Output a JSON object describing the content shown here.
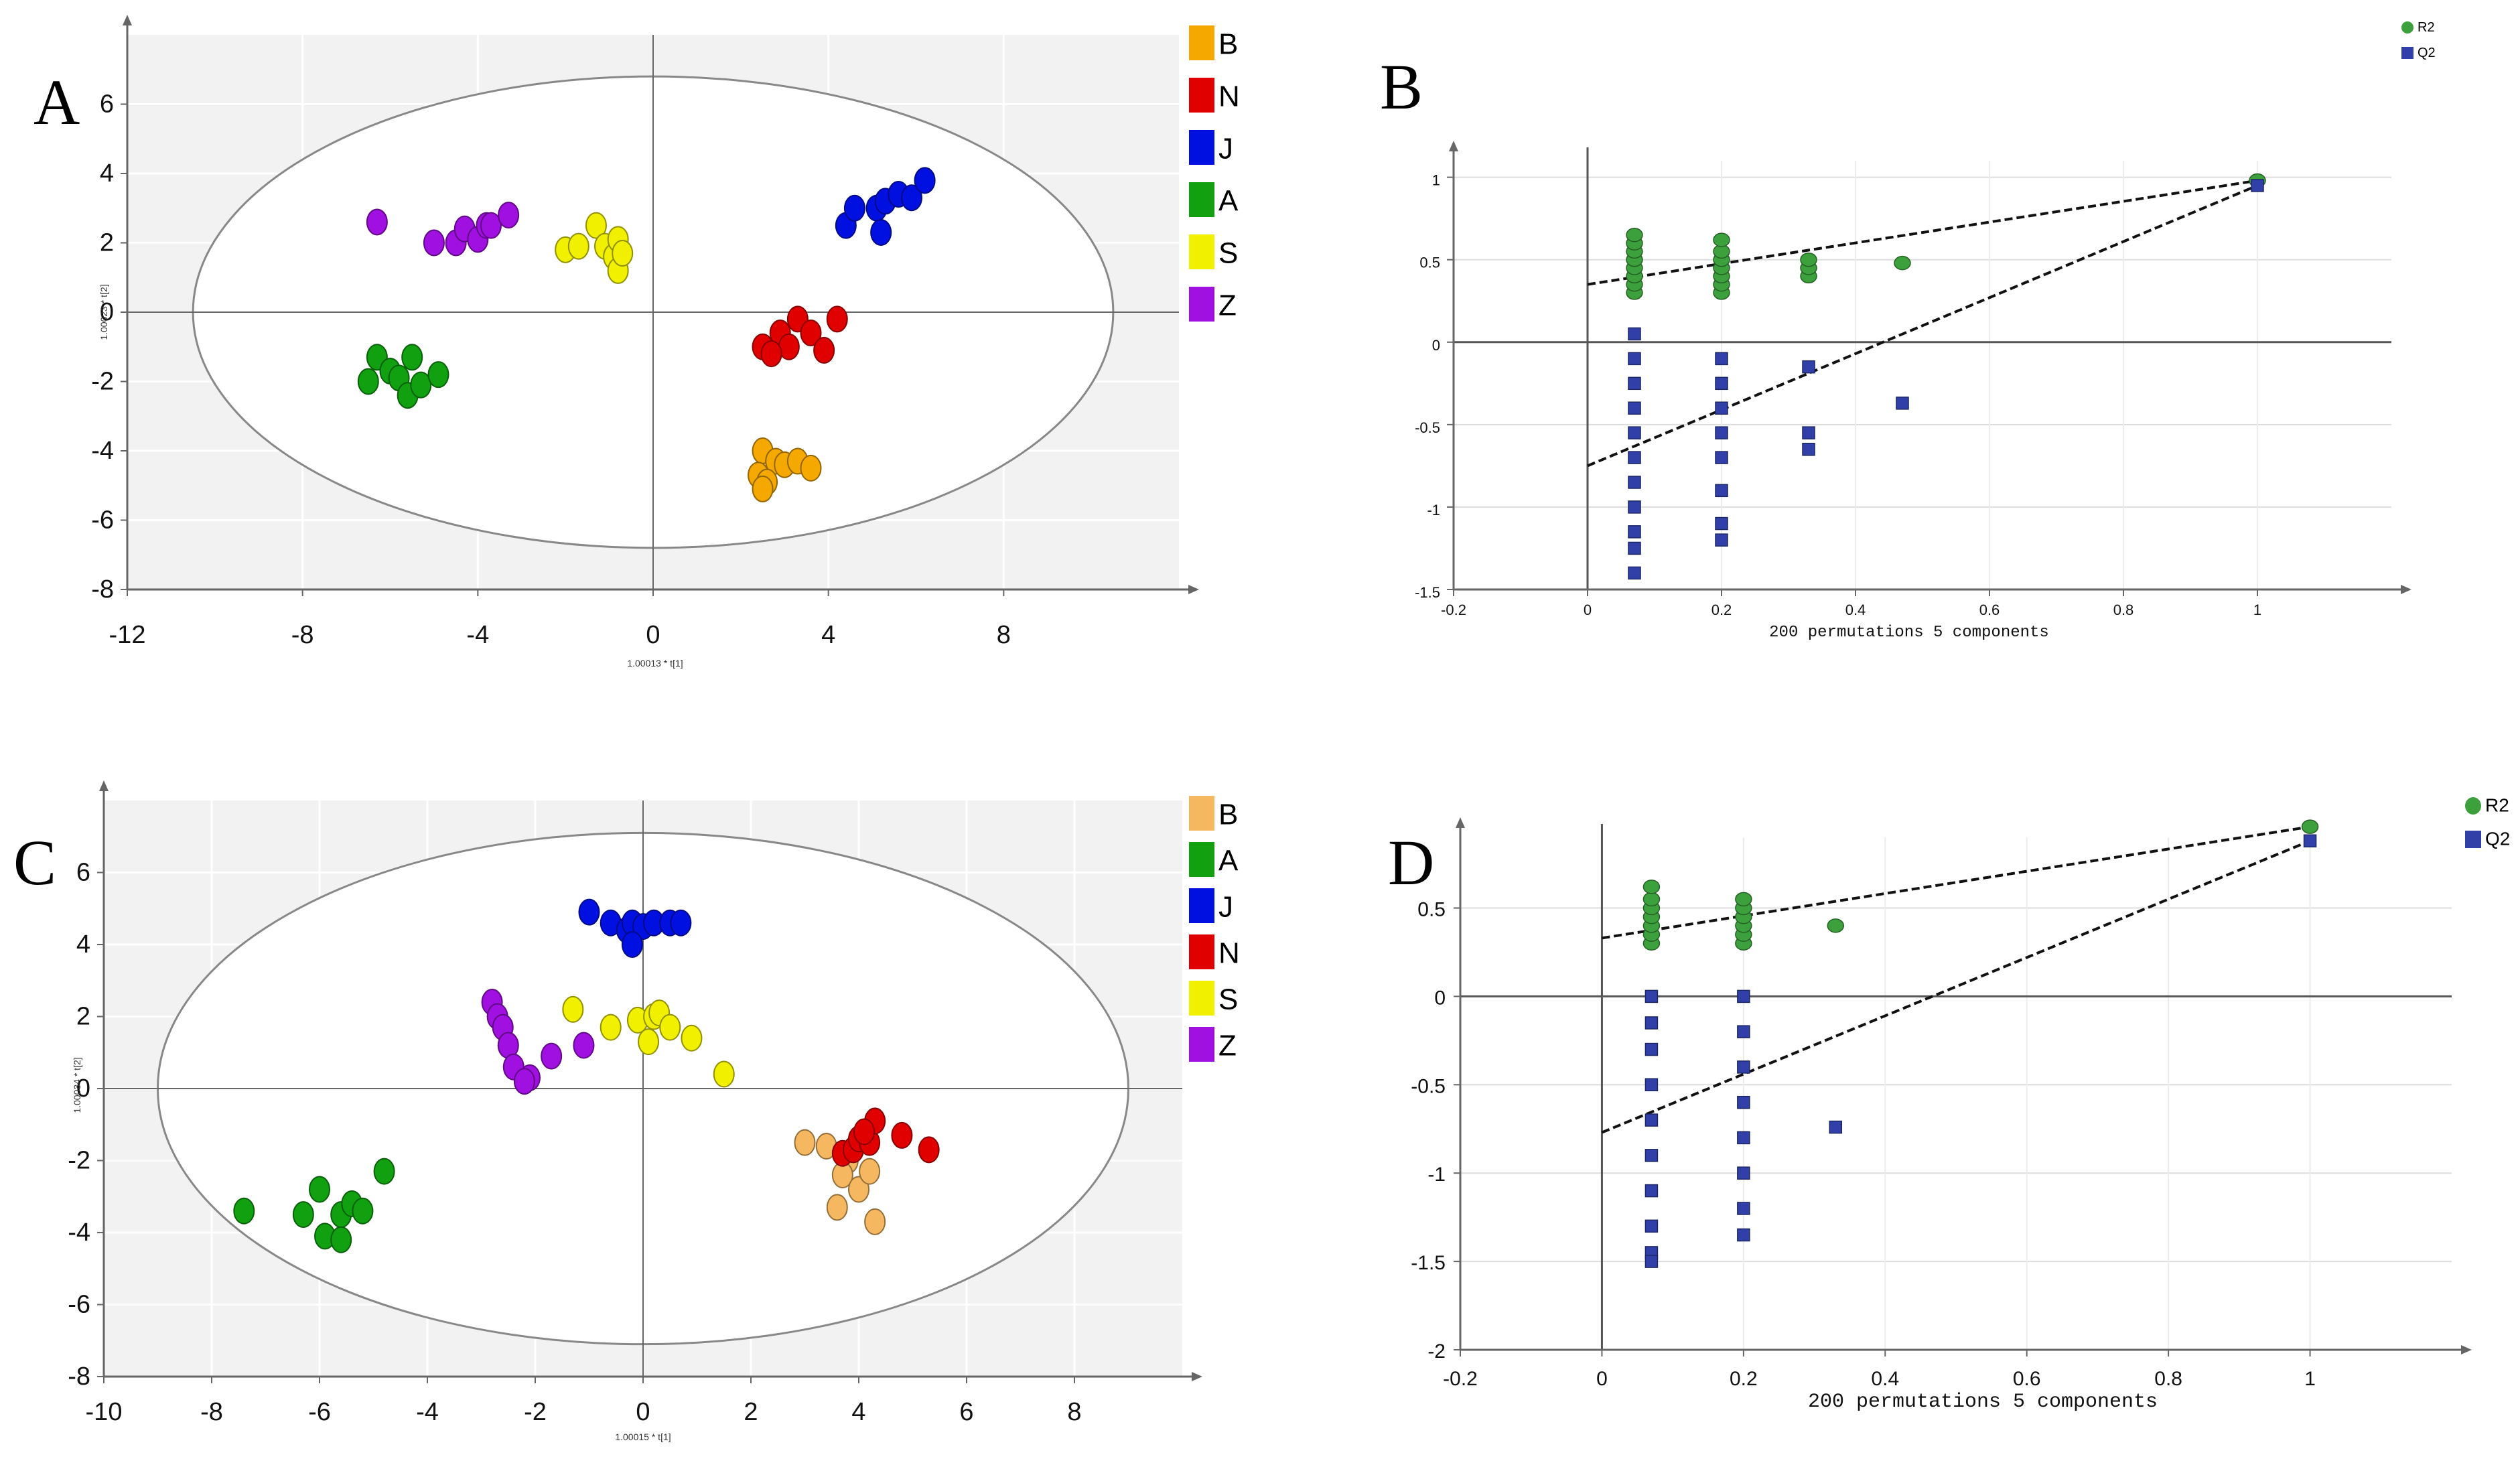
{
  "chart_data": [
    {
      "panel": "A",
      "type": "scatter",
      "xlabel": "1.00013 * t[1]",
      "ylabel": "1.00023 * t[2]",
      "xlim": [
        -12,
        12
      ],
      "ylim": [
        -8,
        8
      ],
      "xticks": [
        -12,
        -8,
        -4,
        0,
        4,
        8
      ],
      "yticks": [
        -8,
        -6,
        -4,
        -2,
        0,
        2,
        4,
        6
      ],
      "ellipse": {
        "cx": 0,
        "cy": 0,
        "rx": 10.5,
        "ry": 6.8
      },
      "legend": [
        {
          "name": "B",
          "color": "#F5A800"
        },
        {
          "name": "N",
          "color": "#E00000"
        },
        {
          "name": "J",
          "color": "#0010E0"
        },
        {
          "name": "A",
          "color": "#10A010"
        },
        {
          "name": "S",
          "color": "#F0F000"
        },
        {
          "name": "Z",
          "color": "#A010E0"
        }
      ],
      "series": [
        {
          "name": "B",
          "x": [
            2.5,
            2.8,
            3.0,
            3.3,
            2.4,
            2.6,
            3.6,
            2.5
          ],
          "y": [
            -4.0,
            -4.3,
            -4.4,
            -4.3,
            -4.7,
            -4.9,
            -4.5,
            -5.1
          ]
        },
        {
          "name": "N",
          "x": [
            2.5,
            2.9,
            3.1,
            3.3,
            3.6,
            3.9,
            4.2,
            2.7
          ],
          "y": [
            -1.0,
            -0.6,
            -1.0,
            -0.2,
            -0.6,
            -1.1,
            -0.2,
            -1.2
          ]
        },
        {
          "name": "J",
          "x": [
            4.4,
            4.6,
            5.1,
            5.3,
            5.6,
            5.9,
            6.2,
            5.2
          ],
          "y": [
            2.5,
            3.0,
            3.0,
            3.2,
            3.4,
            3.3,
            3.8,
            2.3
          ]
        },
        {
          "name": "A",
          "x": [
            -6.5,
            -6.3,
            -6.0,
            -5.8,
            -5.6,
            -5.5,
            -5.3,
            -4.9
          ],
          "y": [
            -2.0,
            -1.3,
            -1.7,
            -1.9,
            -2.4,
            -1.3,
            -2.1,
            -1.8
          ]
        },
        {
          "name": "S",
          "x": [
            -2.0,
            -1.7,
            -1.3,
            -1.1,
            -0.9,
            -0.8,
            -0.8,
            -0.7
          ],
          "y": [
            1.8,
            1.9,
            2.5,
            1.9,
            1.6,
            2.1,
            1.2,
            1.7
          ]
        },
        {
          "name": "Z",
          "x": [
            -6.3,
            -5.0,
            -4.5,
            -4.3,
            -4.0,
            -3.8,
            -3.7,
            -3.3
          ],
          "y": [
            2.6,
            2.0,
            2.0,
            2.4,
            2.1,
            2.5,
            2.5,
            2.8
          ]
        }
      ]
    },
    {
      "panel": "B",
      "type": "scatter",
      "xlabel": "200 permutations 5 components",
      "xlim": [
        -0.2,
        1.2
      ],
      "ylim": [
        -1.5,
        1.1
      ],
      "xticks": [
        -0.2,
        0,
        0.2,
        0.4,
        0.6,
        0.8,
        1
      ],
      "yticks": [
        -1.5,
        -1,
        -0.5,
        0,
        0.5,
        1
      ],
      "legend": [
        {
          "name": "R2",
          "color": "#3CA03C"
        },
        {
          "name": "Q2",
          "color": "#3040A8"
        }
      ],
      "series": [
        {
          "name": "R2",
          "x": [
            0.07,
            0.07,
            0.07,
            0.07,
            0.07,
            0.07,
            0.07,
            0.07,
            0.2,
            0.2,
            0.2,
            0.2,
            0.2,
            0.2,
            0.2,
            0.33,
            0.33,
            0.33,
            0.47,
            1.0
          ],
          "y": [
            0.3,
            0.35,
            0.4,
            0.45,
            0.5,
            0.55,
            0.6,
            0.65,
            0.3,
            0.35,
            0.4,
            0.45,
            0.5,
            0.55,
            0.62,
            0.4,
            0.45,
            0.5,
            0.48,
            0.98
          ]
        },
        {
          "name": "Q2",
          "x": [
            0.07,
            0.07,
            0.07,
            0.07,
            0.07,
            0.07,
            0.07,
            0.07,
            0.07,
            0.07,
            0.07,
            0.2,
            0.2,
            0.2,
            0.2,
            0.2,
            0.2,
            0.2,
            0.2,
            0.33,
            0.33,
            0.33,
            0.47,
            1.0
          ],
          "y": [
            0.05,
            -0.1,
            -0.25,
            -0.4,
            -0.55,
            -0.7,
            -0.85,
            -1.0,
            -1.15,
            -1.25,
            -1.4,
            -0.1,
            -0.25,
            -0.4,
            -0.55,
            -0.7,
            -0.9,
            -1.1,
            -1.2,
            -0.15,
            -0.55,
            -0.65,
            -0.37,
            0.95
          ]
        }
      ],
      "regression": [
        {
          "name": "R2",
          "x": [
            0,
            1.0
          ],
          "y": [
            0.35,
            0.98
          ]
        },
        {
          "name": "Q2",
          "x": [
            0,
            1.0
          ],
          "y": [
            -0.75,
            0.95
          ]
        }
      ]
    },
    {
      "panel": "C",
      "type": "scatter",
      "xlabel": "1.00015 * t[1]",
      "ylabel": "1.00034 * t[2]",
      "xlim": [
        -10,
        10
      ],
      "ylim": [
        -8,
        8
      ],
      "xticks": [
        -10,
        -8,
        -6,
        -4,
        -2,
        0,
        2,
        4,
        6,
        8
      ],
      "yticks": [
        -8,
        -6,
        -4,
        -2,
        0,
        2,
        4,
        6
      ],
      "ellipse": {
        "cx": 0,
        "cy": 0,
        "rx": 9.0,
        "ry": 7.1
      },
      "legend": [
        {
          "name": "B",
          "color": "#F5B860"
        },
        {
          "name": "A",
          "color": "#10A010"
        },
        {
          "name": "J",
          "color": "#0010E0"
        },
        {
          "name": "N",
          "color": "#E00000"
        },
        {
          "name": "S",
          "color": "#F0F000"
        },
        {
          "name": "Z",
          "color": "#A010E0"
        }
      ],
      "series": [
        {
          "name": "B",
          "x": [
            3.0,
            3.4,
            3.8,
            3.7,
            3.6,
            4.0,
            4.2,
            4.3
          ],
          "y": [
            -1.5,
            -1.6,
            -2.0,
            -2.4,
            -3.3,
            -2.8,
            -2.3,
            -3.7
          ]
        },
        {
          "name": "A",
          "x": [
            -7.4,
            -6.3,
            -6.0,
            -5.9,
            -5.6,
            -5.4,
            -5.2,
            -5.6,
            -4.8
          ],
          "y": [
            -3.4,
            -3.5,
            -2.8,
            -4.1,
            -3.5,
            -3.2,
            -3.4,
            -4.2,
            -2.3
          ]
        },
        {
          "name": "J",
          "x": [
            -1.0,
            -0.6,
            -0.3,
            -0.2,
            0.0,
            0.2,
            0.5,
            0.7,
            -0.2
          ],
          "y": [
            4.9,
            4.6,
            4.4,
            4.6,
            4.5,
            4.6,
            4.6,
            4.6,
            4.0
          ]
        },
        {
          "name": "N",
          "x": [
            3.7,
            3.9,
            4.0,
            4.2,
            4.3,
            4.8,
            5.3,
            4.1
          ],
          "y": [
            -1.8,
            -1.7,
            -1.4,
            -1.5,
            -0.9,
            -1.3,
            -1.7,
            -1.2
          ]
        },
        {
          "name": "S",
          "x": [
            -1.3,
            -0.6,
            -0.1,
            0.2,
            0.3,
            0.5,
            0.9,
            1.5,
            0.1
          ],
          "y": [
            2.2,
            1.7,
            1.9,
            2.0,
            2.1,
            1.7,
            1.4,
            0.4,
            1.3
          ]
        },
        {
          "name": "Z",
          "x": [
            -2.8,
            -2.7,
            -2.6,
            -2.5,
            -2.4,
            -2.1,
            -2.2,
            -1.7,
            -1.1
          ],
          "y": [
            2.4,
            2.0,
            1.7,
            1.2,
            0.6,
            0.3,
            0.2,
            0.9,
            1.2
          ]
        }
      ]
    },
    {
      "panel": "D",
      "type": "scatter",
      "xlabel": "200 permutations 5 components",
      "xlim": [
        -0.2,
        1.2
      ],
      "ylim": [
        -2,
        0.9
      ],
      "xticks": [
        -0.2,
        0,
        0.2,
        0.4,
        0.6,
        0.8,
        1
      ],
      "yticks": [
        -2,
        -1.5,
        -1,
        -0.5,
        0,
        0.5
      ],
      "legend": [
        {
          "name": "R2",
          "color": "#3CA03C"
        },
        {
          "name": "Q2",
          "color": "#3040A8"
        }
      ],
      "series": [
        {
          "name": "R2",
          "x": [
            0.07,
            0.07,
            0.07,
            0.07,
            0.07,
            0.07,
            0.07,
            0.2,
            0.2,
            0.2,
            0.2,
            0.2,
            0.2,
            0.33,
            1.0
          ],
          "y": [
            0.3,
            0.35,
            0.4,
            0.45,
            0.5,
            0.55,
            0.62,
            0.3,
            0.35,
            0.4,
            0.45,
            0.5,
            0.55,
            0.4,
            0.96
          ]
        },
        {
          "name": "Q2",
          "x": [
            0.07,
            0.07,
            0.07,
            0.07,
            0.07,
            0.07,
            0.07,
            0.07,
            0.07,
            0.07,
            0.2,
            0.2,
            0.2,
            0.2,
            0.2,
            0.2,
            0.2,
            0.2,
            0.33,
            1.0
          ],
          "y": [
            0.0,
            -0.15,
            -0.3,
            -0.5,
            -0.7,
            -0.9,
            -1.1,
            -1.3,
            -1.45,
            -1.5,
            0.0,
            -0.2,
            -0.4,
            -0.6,
            -0.8,
            -1.0,
            -1.2,
            -1.35,
            -0.74,
            0.88
          ]
        }
      ],
      "regression": [
        {
          "name": "R2",
          "x": [
            0,
            1.0
          ],
          "y": [
            0.33,
            0.96
          ]
        },
        {
          "name": "Q2",
          "x": [
            0,
            1.0
          ],
          "y": [
            -0.77,
            0.88
          ]
        }
      ]
    }
  ]
}
